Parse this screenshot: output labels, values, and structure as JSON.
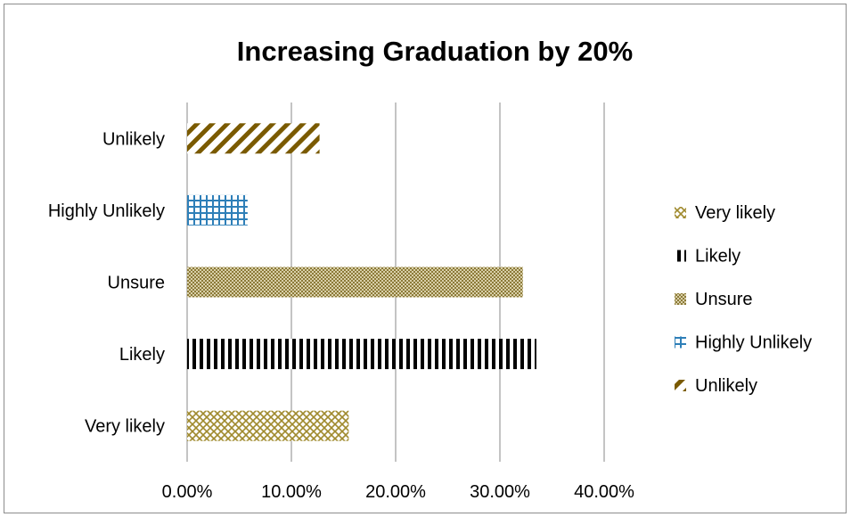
{
  "chart_data": {
    "type": "bar",
    "orientation": "horizontal",
    "title": "Increasing Graduation by 20%",
    "xlabel": "",
    "ylabel": "",
    "categories": [
      "Very likely",
      "Likely",
      "Unsure",
      "Highly Unlikely",
      "Unlikely"
    ],
    "values": [
      0.155,
      0.335,
      0.322,
      0.058,
      0.127
    ],
    "xlim": [
      0,
      0.4
    ],
    "x_ticks": [
      "0.00%",
      "10.00%",
      "20.00%",
      "30.00%",
      "40.00%"
    ],
    "grid": "vertical",
    "legend": {
      "position": "right",
      "entries": [
        "Very likely",
        "Likely",
        "Unsure",
        "Highly Unlikely",
        "Unlikely"
      ]
    },
    "colors": {
      "Very likely": "#a08a2e",
      "Likely": "#000000",
      "Unsure": "#9c8a4a",
      "Highly Unlikely": "#2e7fb8",
      "Unlikely": "#7a5a00"
    }
  }
}
